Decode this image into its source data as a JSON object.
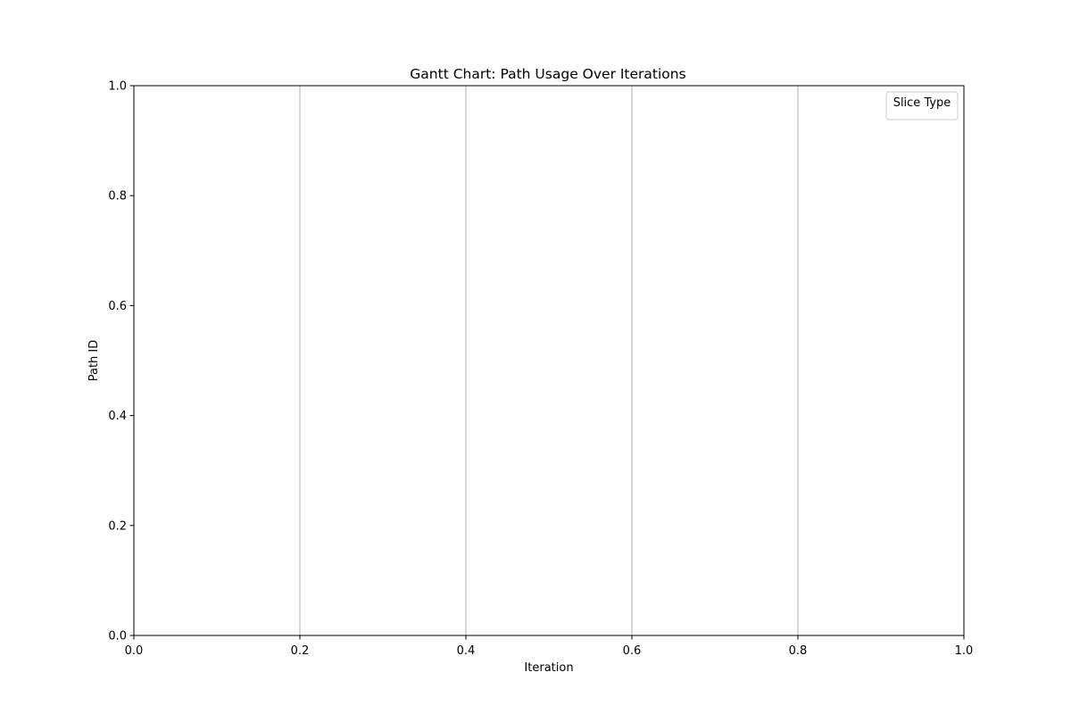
{
  "chart_data": {
    "type": "gantt",
    "title": "Gantt Chart: Path Usage Over Iterations",
    "xlabel": "Iteration",
    "ylabel": "Path ID",
    "xlim": [
      0.0,
      1.0
    ],
    "ylim": [
      0.0,
      1.0
    ],
    "x_ticks": [
      "0.0",
      "0.2",
      "0.4",
      "0.6",
      "0.8",
      "1.0"
    ],
    "y_ticks": [
      "0.0",
      "0.2",
      "0.4",
      "0.6",
      "0.8",
      "1.0"
    ],
    "grid": "x-axis only",
    "legend": {
      "title": "Slice Type",
      "placement": "top-right",
      "entries": []
    },
    "series": []
  }
}
